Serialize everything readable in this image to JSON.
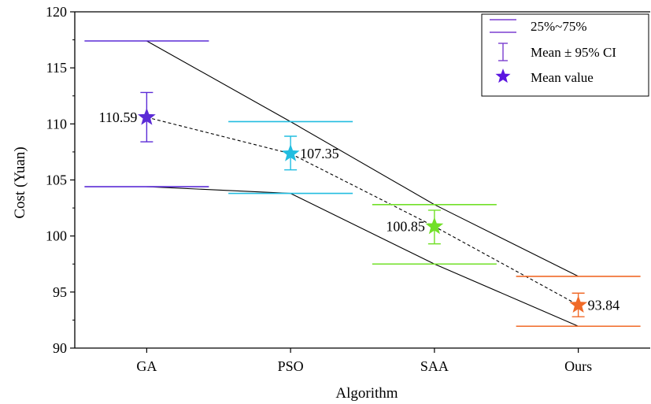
{
  "chart_data": {
    "type": "box-range",
    "categories": [
      "GA",
      "PSO",
      "SAA",
      "Ours"
    ],
    "xlabel": "Algorithm",
    "ylabel": "Cost (Yuan)",
    "ylim": [
      90,
      120
    ],
    "yticks": [
      90,
      95,
      100,
      105,
      110,
      115,
      120
    ],
    "ytick_labels": [
      "90",
      "95",
      "100",
      "105",
      "110",
      "115",
      "120"
    ],
    "grid": false,
    "legend_position": "top-right",
    "series": [
      {
        "category": "GA",
        "color": "#5b2bd6",
        "q25": 104.4,
        "q75": 117.4,
        "mean": 110.59,
        "mean_label": "110.59",
        "ci_low": 108.4,
        "ci_high": 112.8,
        "label_side": "left"
      },
      {
        "category": "PSO",
        "color": "#22bde0",
        "q25": 103.8,
        "q75": 110.2,
        "mean": 107.35,
        "mean_label": "107.35",
        "ci_low": 105.9,
        "ci_high": 108.9,
        "label_side": "right"
      },
      {
        "category": "SAA",
        "color": "#72e028",
        "q25": 97.5,
        "q75": 102.8,
        "mean": 100.85,
        "mean_label": "100.85",
        "ci_low": 99.3,
        "ci_high": 102.3,
        "label_side": "left"
      },
      {
        "category": "Ours",
        "color": "#f06a28",
        "q25": 91.95,
        "q75": 96.4,
        "mean": 93.84,
        "mean_label": "93.84",
        "ci_low": 92.8,
        "ci_high": 94.9,
        "label_side": "right"
      }
    ],
    "legend": [
      {
        "marker": "line",
        "label": "25%~75%",
        "color": "#7b3fd0"
      },
      {
        "marker": "errorbar",
        "label": "Mean ± 95% CI",
        "color": "#7b3fd0"
      },
      {
        "marker": "star",
        "label": "Mean value",
        "color": "#5b16e0"
      }
    ]
  }
}
